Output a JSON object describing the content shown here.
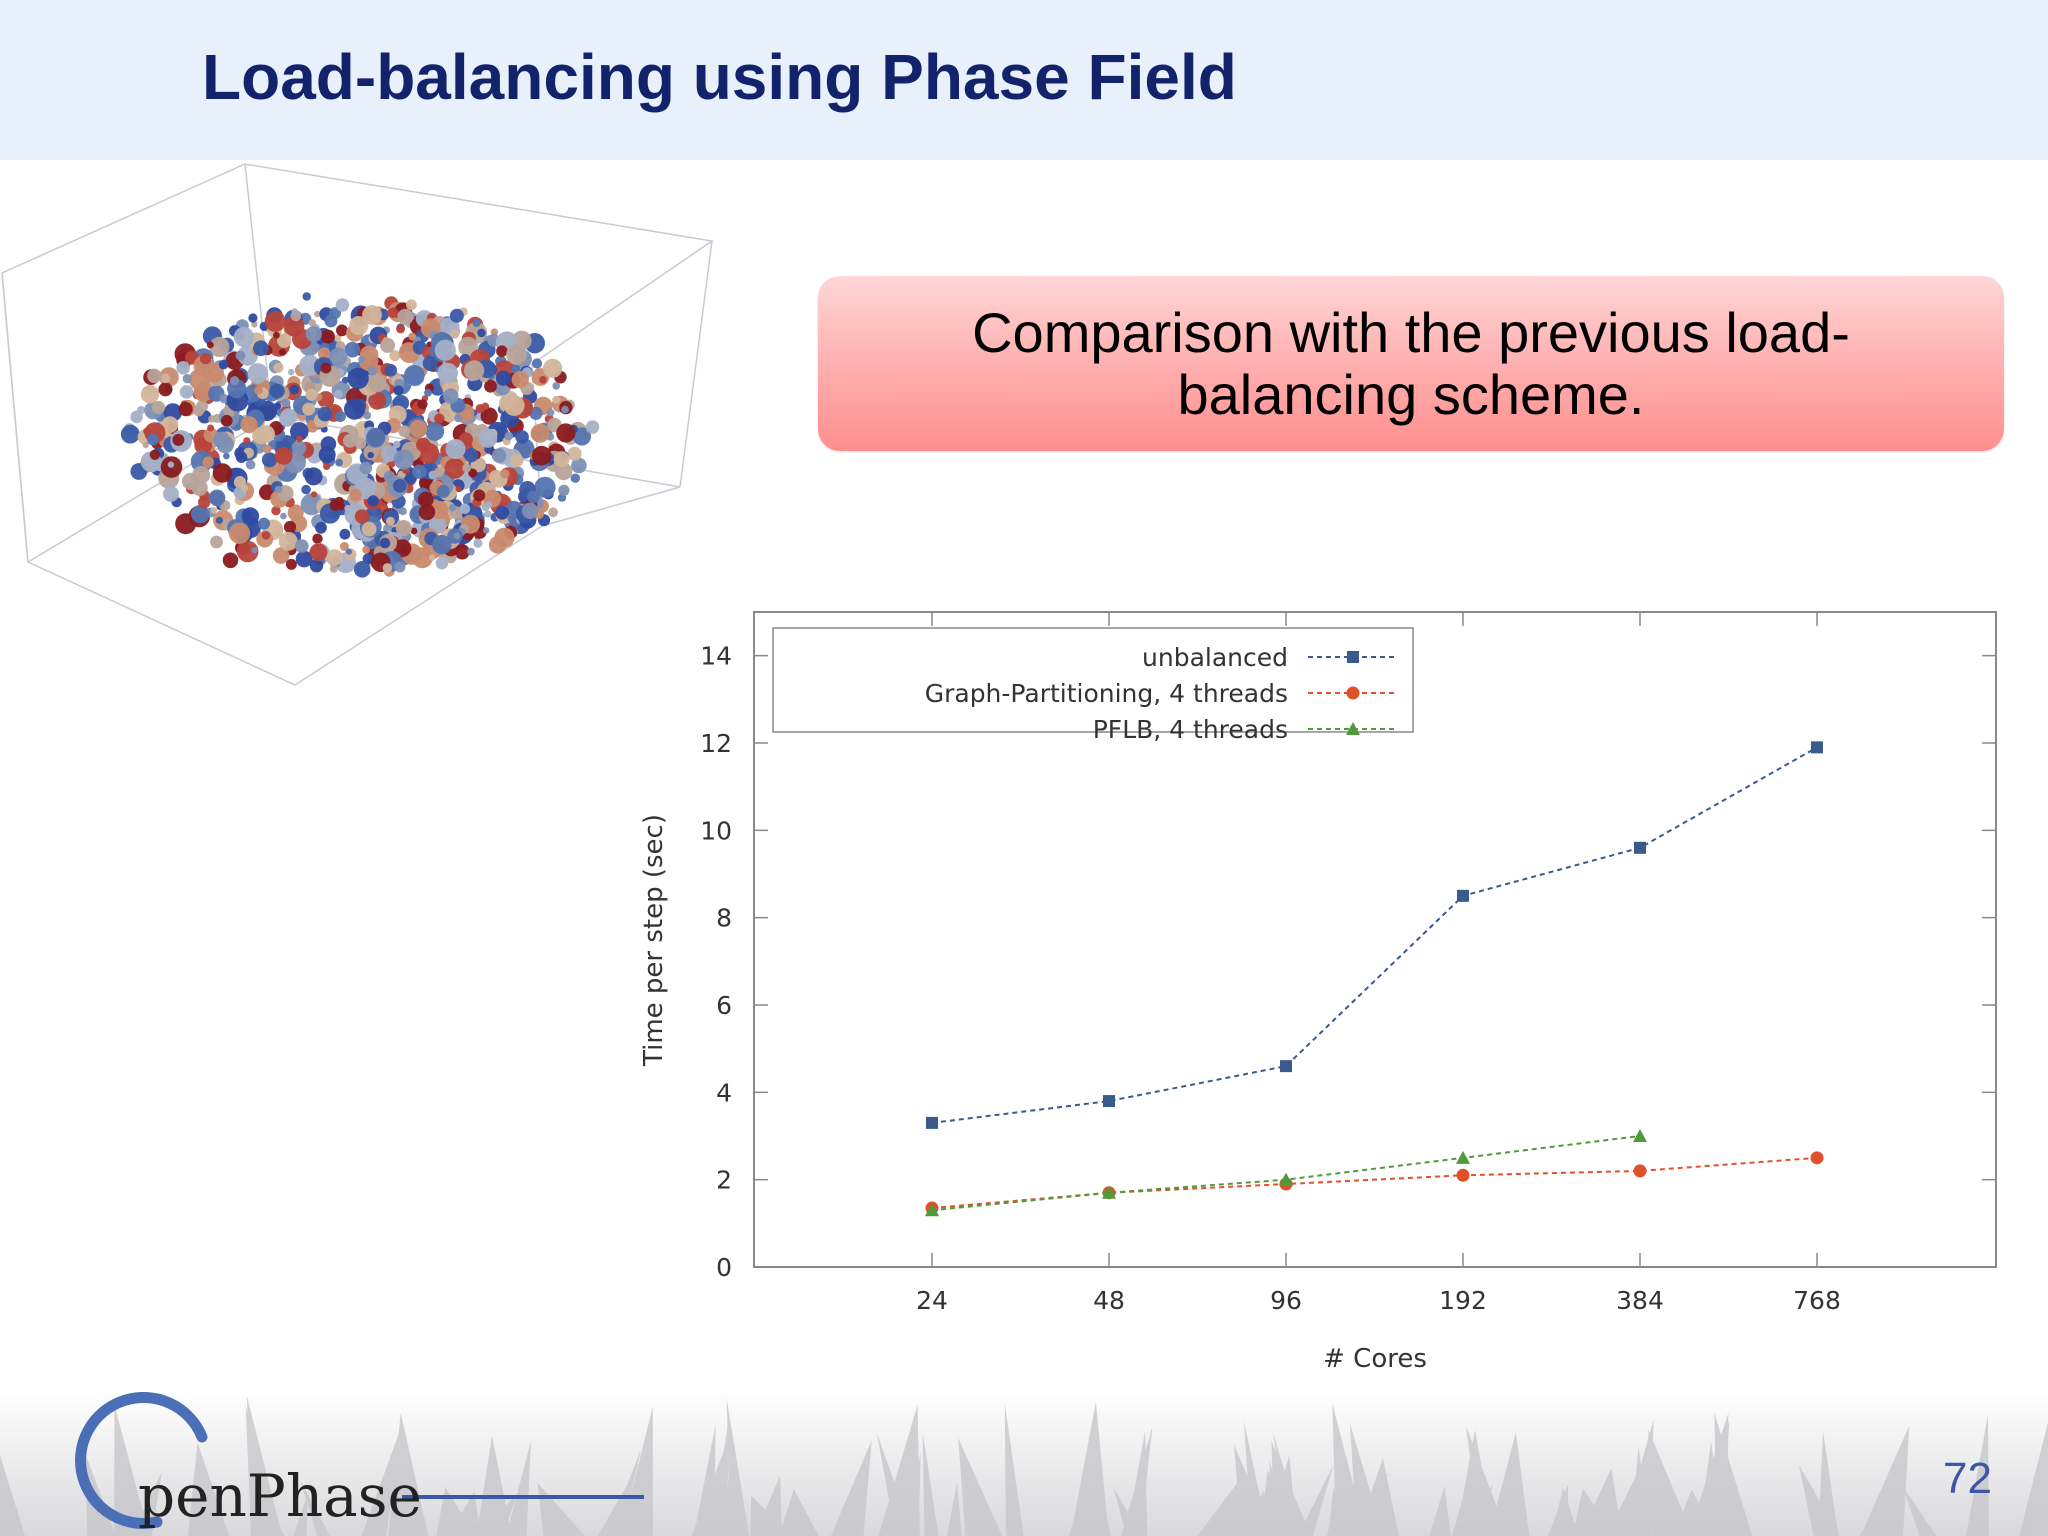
{
  "slide": {
    "title": "Load-balancing using Phase Field",
    "callout": "Comparison with the previous load-balancing scheme.",
    "page_number": "72",
    "logo_text": "penPhase"
  },
  "colors": {
    "title": "#13236b",
    "unbalanced": "#3b5a8c",
    "graph_partitioning": "#e0502a",
    "pflb": "#4f9a3a"
  },
  "chart_data": {
    "type": "line",
    "xlabel": "# Cores",
    "ylabel": "Time per step (sec)",
    "categories": [
      "24",
      "48",
      "96",
      "192",
      "384",
      "768"
    ],
    "ylim": [
      0,
      15
    ],
    "yticks": [
      "0",
      "2",
      "4",
      "6",
      "8",
      "10",
      "12",
      "14"
    ],
    "legend_position": "top-left",
    "grid": false,
    "series": [
      {
        "name": "unbalanced",
        "marker": "square",
        "values": [
          3.3,
          3.8,
          4.6,
          8.5,
          9.6,
          11.9
        ]
      },
      {
        "name": "Graph-Partitioning, 4 threads",
        "marker": "circle",
        "values": [
          1.35,
          1.7,
          1.9,
          2.1,
          2.2,
          2.5
        ]
      },
      {
        "name": "PFLB, 4 threads",
        "marker": "triangle",
        "values": [
          1.3,
          1.7,
          2.0,
          2.5,
          3.0,
          null
        ]
      }
    ]
  }
}
